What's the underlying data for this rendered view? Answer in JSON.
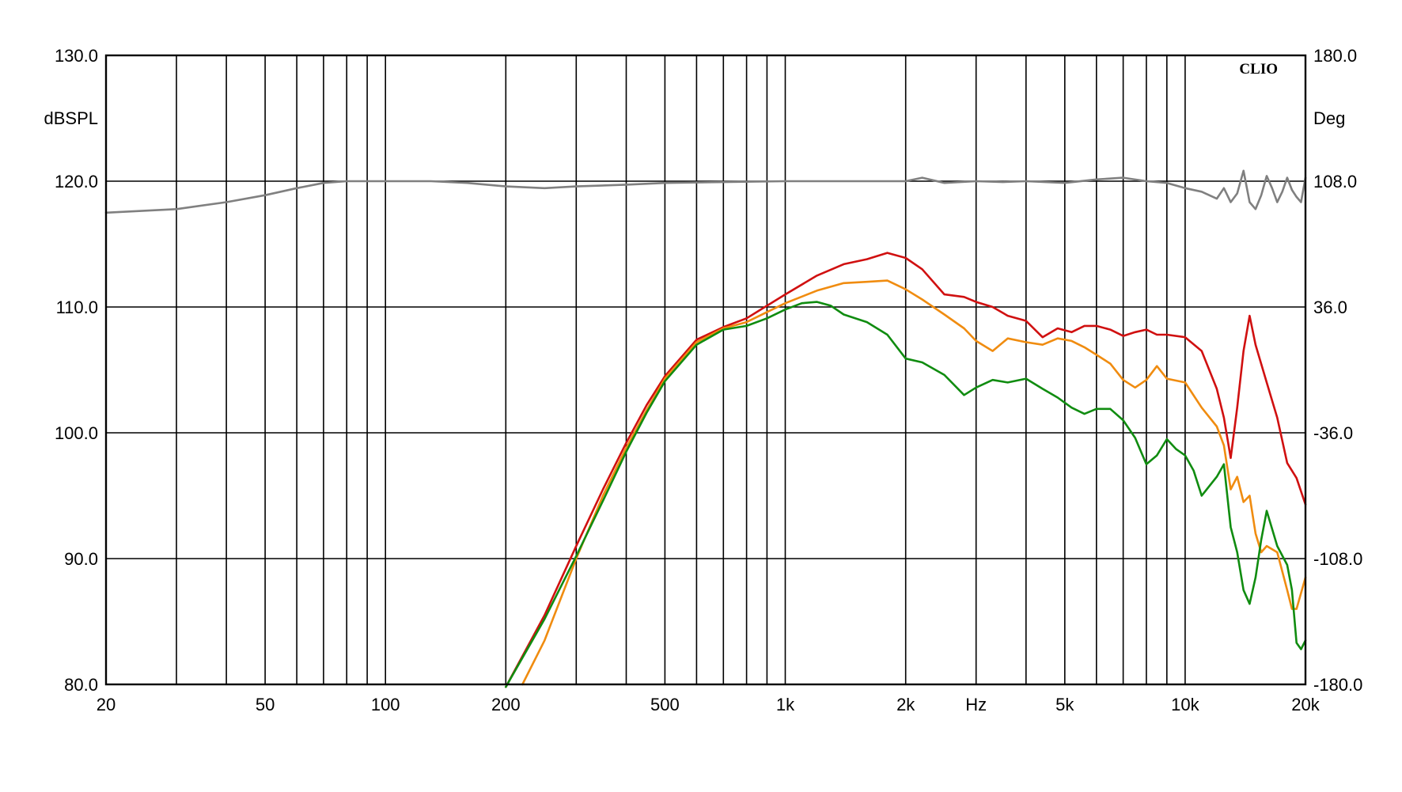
{
  "chart_data": {
    "type": "line",
    "brand": "CLIO",
    "xlabel": "Hz",
    "ylabel_left": "dBSPL",
    "ylabel_right": "Deg",
    "x_scale": "log",
    "xlim": [
      20,
      20000
    ],
    "ylim_left": [
      80,
      130
    ],
    "ylim_right": [
      -180,
      180
    ],
    "grid": true,
    "x_tick_labels": [
      {
        "value": 20,
        "label": "20"
      },
      {
        "value": 50,
        "label": "50"
      },
      {
        "value": 100,
        "label": "100"
      },
      {
        "value": 200,
        "label": "200"
      },
      {
        "value": 500,
        "label": "500"
      },
      {
        "value": 1000,
        "label": "1k"
      },
      {
        "value": 2000,
        "label": "2k"
      },
      {
        "value": 5000,
        "label": "5k"
      },
      {
        "value": 10000,
        "label": "10k"
      },
      {
        "value": 20000,
        "label": "20k"
      }
    ],
    "x_gridlines": [
      20,
      30,
      40,
      50,
      60,
      70,
      80,
      90,
      100,
      200,
      300,
      400,
      500,
      600,
      700,
      800,
      900,
      1000,
      2000,
      3000,
      4000,
      5000,
      6000,
      7000,
      8000,
      9000,
      10000,
      20000
    ],
    "y_left_ticks": [
      {
        "value": 130,
        "label": "130.0"
      },
      {
        "value": 120,
        "label": "120.0"
      },
      {
        "value": 110,
        "label": "110.0"
      },
      {
        "value": 100,
        "label": "100.0"
      },
      {
        "value": 90,
        "label": "90.0"
      },
      {
        "value": 80,
        "label": "80.0"
      }
    ],
    "y_right_ticks": [
      {
        "value": 180,
        "label": "180.0"
      },
      {
        "value": 108,
        "label": "108.0"
      },
      {
        "value": 36,
        "label": "36.0"
      },
      {
        "value": -36,
        "label": "-36.0"
      },
      {
        "value": -108,
        "label": "-108.0"
      },
      {
        "value": -180,
        "label": "-180.0"
      }
    ],
    "series": [
      {
        "color": "#808080",
        "axis": "right",
        "x": [
          20,
          30,
          40,
          50,
          60,
          70,
          80,
          100,
          130,
          160,
          200,
          250,
          300,
          400,
          500,
          700,
          1000,
          1500,
          2000,
          2200,
          2500,
          3000,
          3500,
          4000,
          5000,
          6000,
          7000,
          8000,
          9000,
          10000,
          11000,
          12000,
          12500,
          13000,
          13500,
          14000,
          14500,
          15000,
          15500,
          16000,
          16500,
          17000,
          17500,
          18000,
          18500,
          19000,
          19500,
          20000
        ],
        "y": [
          90,
          92,
          96,
          100,
          104,
          107,
          108,
          108,
          108,
          107,
          105,
          104,
          105,
          106,
          107,
          107.5,
          108,
          108,
          108,
          110,
          107,
          108,
          107.5,
          108,
          107,
          109,
          110,
          108,
          107,
          104,
          102,
          98,
          104,
          96,
          101,
          114,
          96,
          92,
          100,
          111,
          104,
          96,
          102,
          110,
          103,
          99,
          96,
          110
        ]
      },
      {
        "color": "#d01010",
        "axis": "left",
        "x": [
          200,
          250,
          300,
          350,
          400,
          450,
          500,
          600,
          700,
          800,
          900,
          1000,
          1200,
          1400,
          1600,
          1800,
          2000,
          2200,
          2500,
          2800,
          3000,
          3300,
          3600,
          4000,
          4400,
          4800,
          5200,
          5600,
          6000,
          6500,
          7000,
          7500,
          8000,
          8500,
          9000,
          10000,
          11000,
          12000,
          12500,
          13000,
          13500,
          14000,
          14500,
          15000,
          16000,
          17000,
          18000,
          19000,
          20000
        ],
        "y": [
          79.8,
          85.5,
          91,
          95.5,
          99.2,
          102.2,
          104.5,
          107.4,
          108.4,
          109.1,
          110.1,
          111,
          112.5,
          113.4,
          113.8,
          114.3,
          113.9,
          113.0,
          111.0,
          110.8,
          110.4,
          110.0,
          109.3,
          108.9,
          107.6,
          108.3,
          108.0,
          108.5,
          108.5,
          108.2,
          107.7,
          108.0,
          108.2,
          107.8,
          107.8,
          107.6,
          106.5,
          103.5,
          101.2,
          98.0,
          102.0,
          106.5,
          109.3,
          107.0,
          104.0,
          101.2,
          97.6,
          96.4,
          94.3
        ]
      },
      {
        "color": "#f08c10",
        "axis": "left",
        "x": [
          220,
          250,
          300,
          350,
          400,
          450,
          500,
          600,
          700,
          800,
          900,
          1000,
          1200,
          1400,
          1600,
          1800,
          2000,
          2200,
          2500,
          2800,
          3000,
          3300,
          3600,
          4000,
          4400,
          4800,
          5200,
          5600,
          6000,
          6500,
          7000,
          7500,
          8000,
          8500,
          9000,
          10000,
          11000,
          12000,
          12500,
          13000,
          13500,
          14000,
          14500,
          15000,
          15500,
          16000,
          17000,
          18000,
          18500,
          19000,
          20000
        ],
        "y": [
          80,
          83.5,
          90,
          95,
          98.8,
          101.8,
          104.3,
          107.2,
          108.3,
          108.8,
          109.6,
          110.3,
          111.3,
          111.9,
          112.0,
          112.1,
          111.4,
          110.6,
          109.4,
          108.3,
          107.3,
          106.5,
          107.5,
          107.2,
          107.0,
          107.5,
          107.3,
          106.8,
          106.2,
          105.5,
          104.2,
          103.6,
          104.2,
          105.3,
          104.3,
          104.0,
          102.0,
          100.5,
          99.0,
          95.5,
          96.5,
          94.5,
          95.0,
          92.0,
          90.5,
          91.0,
          90.5,
          87.5,
          86.0,
          86.0,
          88.5
        ]
      },
      {
        "color": "#108c10",
        "axis": "left",
        "x": [
          200,
          250,
          300,
          350,
          400,
          450,
          500,
          600,
          700,
          800,
          900,
          1000,
          1100,
          1200,
          1300,
          1400,
          1600,
          1800,
          2000,
          2200,
          2500,
          2800,
          3000,
          3300,
          3600,
          4000,
          4400,
          4800,
          5200,
          5600,
          6000,
          6500,
          7000,
          7500,
          8000,
          8500,
          9000,
          9500,
          10000,
          10500,
          11000,
          12000,
          12500,
          13000,
          13500,
          14000,
          14500,
          15000,
          15500,
          16000,
          17000,
          18000,
          18500,
          19000,
          19500,
          20000
        ],
        "y": [
          79.8,
          85.2,
          90.2,
          94.6,
          98.5,
          101.6,
          104.1,
          107.0,
          108.2,
          108.5,
          109.1,
          109.8,
          110.3,
          110.4,
          110.1,
          109.4,
          108.8,
          107.8,
          105.9,
          105.6,
          104.6,
          103.0,
          103.6,
          104.2,
          104.0,
          104.3,
          103.5,
          102.8,
          102.0,
          101.5,
          101.9,
          101.9,
          101.0,
          99.6,
          97.5,
          98.2,
          99.5,
          98.7,
          98.2,
          97.0,
          95.0,
          96.5,
          97.5,
          92.5,
          90.5,
          87.5,
          86.4,
          88.5,
          91.5,
          93.8,
          91.0,
          89.5,
          87.5,
          83.3,
          82.8,
          83.5
        ]
      }
    ]
  }
}
